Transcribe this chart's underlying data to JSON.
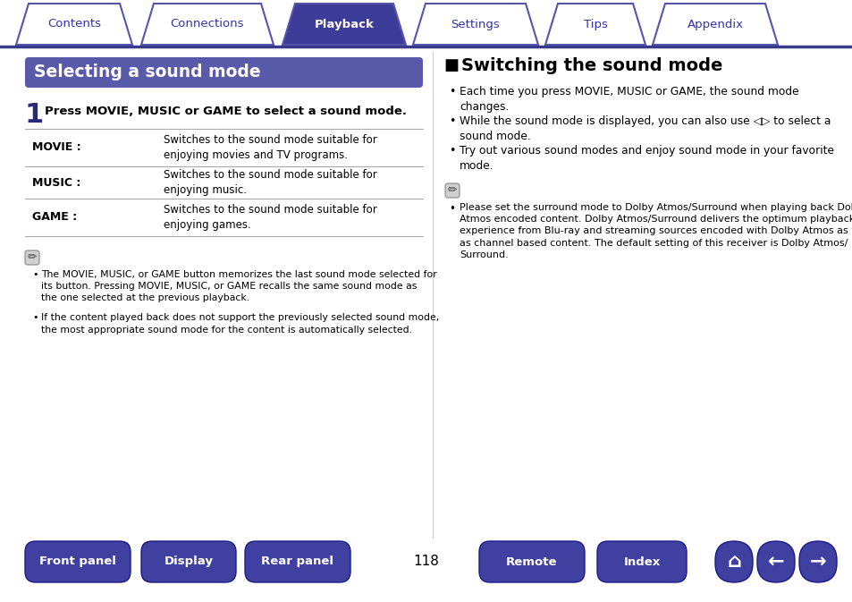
{
  "bg_color": "#ffffff",
  "page_number": "118",
  "tab_labels": [
    "Contents",
    "Connections",
    "Playback",
    "Settings",
    "Tips",
    "Appendix"
  ],
  "active_tab": "Playback",
  "tab_color_active": "#3d3d99",
  "tab_color_inactive": "#ffffff",
  "tab_border_color": "#5555aa",
  "tab_text_color_active": "#ffffff",
  "tab_text_color_inactive": "#3333aa",
  "header_line_color": "#3a3a8c",
  "left_title_bg": "#5a5aaa",
  "left_title_text": "Selecting a sound mode",
  "left_title_text_color": "#ffffff",
  "step_bold": "Press MOVIE, MUSIC or GAME to select a sound mode.",
  "table_rows": [
    [
      "MOVIE :",
      "Switches to the sound mode suitable for\nenjoying movies and TV programs."
    ],
    [
      "MUSIC :",
      "Switches to the sound mode suitable for\nenjoying music."
    ],
    [
      "GAME :",
      "Switches to the sound mode suitable for\nenjoying games."
    ]
  ],
  "note_bullets_left": [
    "The MOVIE, MUSIC, or GAME button memorizes the last sound mode selected for\nits button. Pressing MOVIE, MUSIC, or GAME recalls the same sound mode as\nthe one selected at the previous playback.",
    "If the content played back does not support the previously selected sound mode,\nthe most appropriate sound mode for the content is automatically selected."
  ],
  "right_section_title": "Switching the sound mode",
  "right_bullets": [
    "Each time you press MOVIE, MUSIC or GAME, the sound mode\nchanges.",
    "While the sound mode is displayed, you can also use ◁▷ to select a\nsound mode.",
    "Try out various sound modes and enjoy sound mode in your favorite\nmode."
  ],
  "right_note_bullet": "Please set the surround mode to Dolby Atmos/Surround when playing back Dolby\nAtmos encoded content. Dolby Atmos/Surround delivers the optimum playback\nexperience from Blu-ray and streaming sources encoded with Dolby Atmos as well\nas channel based content. The default setting of this receiver is Dolby Atmos/\nSurround.",
  "bottom_buttons": [
    "Front panel",
    "Display",
    "Rear panel",
    "Remote",
    "Index"
  ],
  "bottom_btn_color": "#4040a0",
  "bottom_btn_text_color": "#ffffff"
}
